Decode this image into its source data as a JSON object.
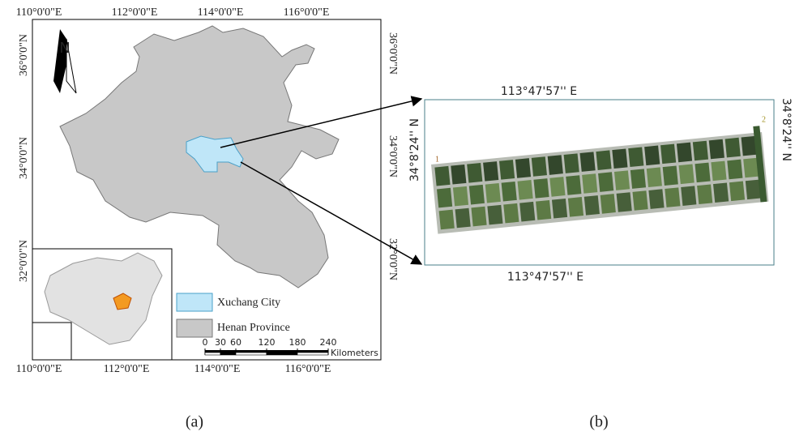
{
  "panel_a": {
    "lon_top": [
      "110°0'0\"E",
      "112°0'0\"E",
      "114°0'0\"E",
      "116°0'0\"E"
    ],
    "lon_bottom": [
      "110°0'0\"E",
      "112°0'0\"E",
      "114°0'0\"E",
      "116°0'0\"E"
    ],
    "lat_left": [
      "36°0'0\"N",
      "34°0'0\"N",
      "32°0'0\"N"
    ],
    "lat_right": [
      "36°0'0\"N",
      "34°0'0\"N",
      "32°0'0\"N"
    ],
    "north": "N",
    "legend": [
      "Xuchang City",
      "Henan Province"
    ],
    "scale": {
      "ticks": [
        0,
        30,
        60,
        120,
        180,
        240
      ],
      "unit": "Kilometers"
    }
  },
  "panel_b": {
    "lon_top": "113°47'57'' E",
    "lon_bottom": "113°47'57'' E",
    "lat_left": "34°8'24'' N",
    "lat_right": "34°8'24'' N",
    "markers": [
      "1",
      "2"
    ]
  },
  "captions": [
    "(a)",
    "(b)"
  ]
}
